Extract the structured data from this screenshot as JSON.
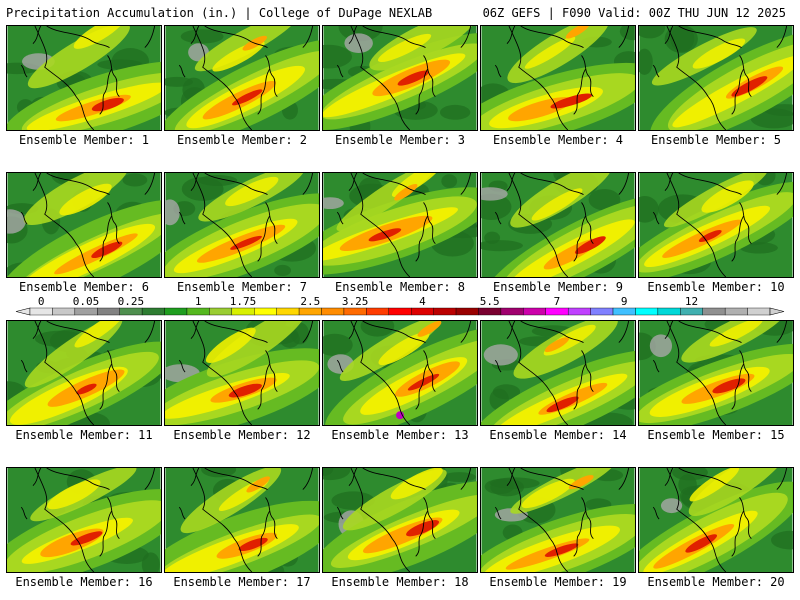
{
  "header": {
    "title_left": "Precipitation Accumulation (in.) | College of DuPage NEXLAB",
    "title_right": "06Z GEFS | F090 Valid: 00Z THU JUN 12 2025"
  },
  "panels": [
    {
      "label": "Ensemble Member: 1"
    },
    {
      "label": "Ensemble Member: 2"
    },
    {
      "label": "Ensemble Member: 3"
    },
    {
      "label": "Ensemble Member: 4"
    },
    {
      "label": "Ensemble Member: 5"
    },
    {
      "label": "Ensemble Member: 6"
    },
    {
      "label": "Ensemble Member: 7"
    },
    {
      "label": "Ensemble Member: 8"
    },
    {
      "label": "Ensemble Member: 9"
    },
    {
      "label": "Ensemble Member: 10"
    },
    {
      "label": "Ensemble Member: 11"
    },
    {
      "label": "Ensemble Member: 12"
    },
    {
      "label": "Ensemble Member: 13"
    },
    {
      "label": "Ensemble Member: 14"
    },
    {
      "label": "Ensemble Member: 15"
    },
    {
      "label": "Ensemble Member: 16"
    },
    {
      "label": "Ensemble Member: 17"
    },
    {
      "label": "Ensemble Member: 18"
    },
    {
      "label": "Ensemble Member: 19"
    },
    {
      "label": "Ensemble Member: 20"
    }
  ],
  "colorbar": {
    "tick_labels": [
      "0",
      "0.05",
      "0.25",
      "1",
      "1.75",
      "2.5",
      "3.25",
      "4",
      "5.5",
      "7",
      "9",
      "12"
    ],
    "colors": [
      "#e6e6e6",
      "#c8c8c8",
      "#a0a0a0",
      "#828282",
      "#4f8f4f",
      "#2e7d32",
      "#1f9e1f",
      "#55b81f",
      "#9acd32",
      "#d8f000",
      "#ffff00",
      "#ffd700",
      "#ffa500",
      "#ff8c00",
      "#ff6a00",
      "#ff3c00",
      "#ff0000",
      "#dd0000",
      "#bb0000",
      "#990000",
      "#7a0030",
      "#a0006e",
      "#cc00aa",
      "#ff00ff",
      "#c040ff",
      "#8080ff",
      "#40c0ff",
      "#00ffff",
      "#00d8d8",
      "#40b0b0",
      "#909090",
      "#b0b0b0",
      "#d0d0d0"
    ]
  },
  "map_colors": {
    "base": "#2e8b2e",
    "dark_green": "#1f6e1f",
    "light_green": "#66bb22",
    "lime": "#a8d820",
    "yellow": "#f0f000",
    "orange": "#ffa500",
    "red": "#e02000",
    "dark_red": "#900000",
    "gray": "#a8a8a8",
    "light_gray": "#cfcfcf",
    "purple": "#c000c0",
    "coast": "#000000"
  }
}
